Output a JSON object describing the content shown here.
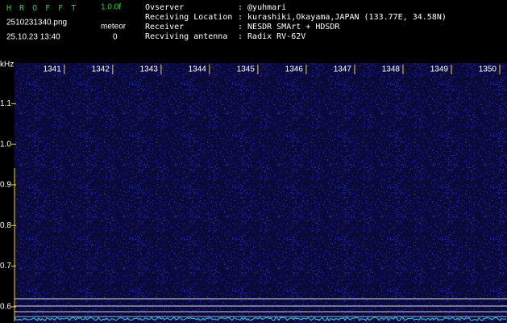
{
  "header": {
    "app_name": "H R O F F T",
    "version": "1.0.0f",
    "filename": "2510231340.png",
    "datetime": "25.10.23 13:40",
    "meteor_label": "meteor",
    "meteor_count": 0,
    "info": [
      {
        "label": "Ovserver",
        "value": ": @yuhmari"
      },
      {
        "label": "Receiving Location",
        "value": ": kurashiki,Okayama,JAPAN (133.77E, 34.58N)"
      },
      {
        "label": "Receiver",
        "value": ": NESDR SMArt + HDSDR"
      },
      {
        "label": "Recviving antenna",
        "value": ": Radix RV-62V"
      }
    ]
  },
  "chart_data": {
    "type": "spectrogram",
    "y_unit": "kHz",
    "xlim": [
      1339.97,
      1350.15
    ],
    "xticks": [
      1341,
      1342,
      1343,
      1344,
      1345,
      1346,
      1347,
      1348,
      1349,
      1350
    ],
    "ylim": [
      0.56,
      1.2
    ],
    "yticks": [
      0.6,
      0.7,
      0.8,
      0.9,
      {
        "value": 1,
        "label": "1.0"
      },
      1.1
    ]
  }
}
